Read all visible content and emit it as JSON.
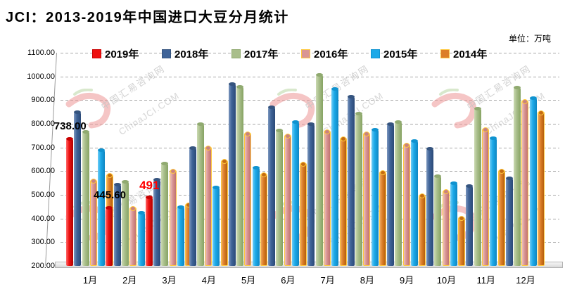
{
  "title": "JCI：2013-2019年中国进口大豆分月统计",
  "unit_label": "单位：万吨",
  "watermark": {
    "line1": "中国汇易咨询网",
    "line2": "ChinaJCI.COM"
  },
  "chart_data": {
    "type": "bar",
    "title": "JCI：2013-2019年中国进口大豆分月统计",
    "unit": "万吨",
    "grid": true,
    "legend_position": "top",
    "categories": [
      "1月",
      "2月",
      "3月",
      "4月",
      "5月",
      "6月",
      "7月",
      "8月",
      "9月",
      "10月",
      "11月",
      "12月"
    ],
    "y_axis": {
      "min": 200,
      "max": 1100,
      "step": 100,
      "tick_labels": [
        "1100.00",
        "1000.00",
        "900.00",
        "800.00",
        "700.00",
        "600.00",
        "500.00",
        "400.00",
        "300.00",
        "200.00"
      ]
    },
    "series": [
      {
        "name": "2019年",
        "color": "#EE1111",
        "light": "#FF6A6A",
        "dark": "#AD0000",
        "cap": "#C90000",
        "values": [
          738.0,
          445.6,
          491,
          null,
          null,
          null,
          null,
          null,
          null,
          null,
          null,
          null
        ]
      },
      {
        "name": "2018年",
        "color": "#3F6398",
        "light": "#7C97BE",
        "dark": "#2B4A77",
        "cap": "#35547F",
        "values": [
          850,
          545,
          565,
          698,
          970,
          870,
          800,
          915,
          800,
          695,
          540,
          572
        ]
      },
      {
        "name": "2017年",
        "color": "#A9BE8B",
        "light": "#CBDAB2",
        "dark": "#86A362",
        "cap": "#90AA70",
        "values": [
          766,
          556,
          633,
          800,
          958,
          772,
          1008,
          845,
          810,
          580,
          866,
          955
        ]
      },
      {
        "name": "2016年",
        "color": "#D99694",
        "light": "#EBC0BF",
        "dark": "#C17270",
        "cap": "#C98280",
        "border": "#FFC83D",
        "values": [
          565,
          450,
          608,
          705,
          764,
          756,
          772,
          764,
          716,
          520,
          782,
          900
        ]
      },
      {
        "name": "2015年",
        "color": "#1CA9E8",
        "light": "#6FCCF6",
        "dark": "#0E86C2",
        "cap": "#0F93D0",
        "values": [
          690,
          425,
          450,
          533,
          616,
          808,
          950,
          776,
          728,
          551,
          740,
          910
        ]
      },
      {
        "name": "2014年",
        "color": "#DC7E28",
        "light": "#EFA65C",
        "dark": "#B55F0C",
        "cap": "#C56B12",
        "border": "#FFC83D",
        "values": [
          590,
          474,
          465,
          648,
          593,
          638,
          745,
          600,
          503,
          408,
          606,
          852
        ]
      }
    ],
    "annotations": [
      {
        "text": "738.00",
        "color": "#000000",
        "month_index": 0,
        "series": "2019年"
      },
      {
        "text": "445.60",
        "color": "#000000",
        "month_index": 1,
        "series": "2019年"
      },
      {
        "text": "491",
        "color": "#FF0000",
        "month_index": 2,
        "series": "2019年"
      }
    ]
  }
}
